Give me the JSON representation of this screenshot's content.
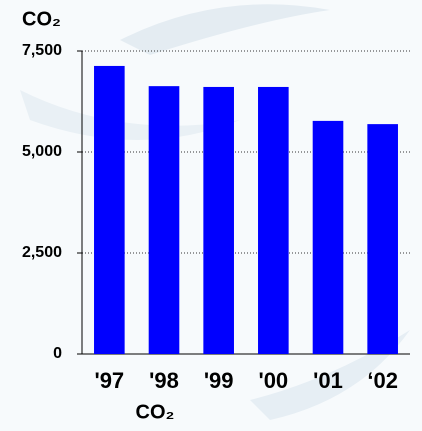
{
  "chart_data": {
    "type": "bar",
    "title": "CO₂",
    "x_label": "CO₂",
    "categories": [
      "'97",
      "'98",
      "'99",
      "'00",
      "'01",
      "‘02"
    ],
    "values": [
      7130,
      6630,
      6610,
      6610,
      5770,
      5690
    ],
    "color": "#0000ff",
    "ylim": [
      0,
      7500
    ],
    "yticks": [
      0,
      {
        "value": 2500,
        "label": "2,500"
      },
      {
        "value": 5000,
        "label": "5,000"
      },
      {
        "value": 7500,
        "label": "7,500"
      }
    ],
    "grid": true
  }
}
